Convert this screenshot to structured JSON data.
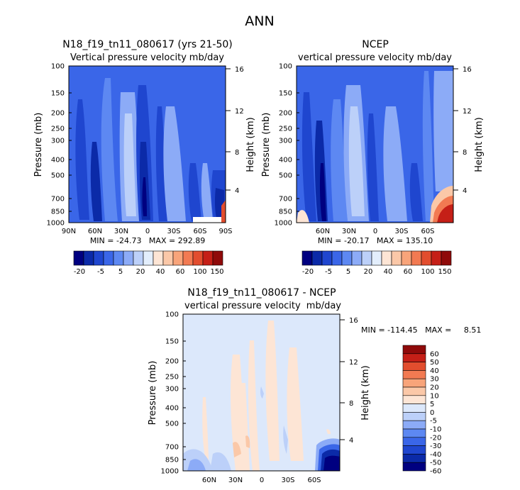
{
  "chart_data": {
    "type": "contour",
    "title": "ANN",
    "panels": [
      {
        "id": "model",
        "title": "N18_f19_tn11_080617 (yrs 21-50)",
        "subtitle_left": "Vertical pressure velocity",
        "subtitle_right": "mb/day",
        "ylabel": "Pressure (mb)",
        "y2label": "Height (km)",
        "xticks": [
          "90N",
          "60N",
          "30N",
          "0",
          "30S",
          "60S",
          "90S"
        ],
        "yticks": [
          100,
          150,
          200,
          250,
          300,
          400,
          500,
          700,
          850,
          1000
        ],
        "y2ticks": [
          4,
          8,
          12,
          16
        ],
        "stats": "MIN = -24.73   MAX = 292.89",
        "min": -24.73,
        "max": 292.89,
        "colorbar_labels": [
          "-20",
          "-5",
          "5",
          "20",
          "40",
          "60",
          "100",
          "150"
        ]
      },
      {
        "id": "obs",
        "title": "NCEP",
        "subtitle_left": "vertical pressure velocity",
        "subtitle_right": "mb/day",
        "ylabel": "Pressure (mb)",
        "y2label": "Height (km)",
        "xticks": [
          "60N",
          "30N",
          "0",
          "30S",
          "60S"
        ],
        "yticks": [
          100,
          150,
          200,
          250,
          300,
          400,
          500,
          700,
          850,
          1000
        ],
        "y2ticks": [
          4,
          8,
          12,
          16
        ],
        "stats": "MIN = -20.17   MAX = 135.10",
        "min": -20.17,
        "max": 135.1,
        "colorbar_labels": [
          "-20",
          "-5",
          "5",
          "20",
          "40",
          "60",
          "100",
          "150"
        ]
      },
      {
        "id": "diff",
        "title": "N18_f19_tn11_080617 - NCEP",
        "subtitle_left": "vertical pressure velocity",
        "subtitle_right": "mb/day",
        "ylabel": "Pressure (mb)",
        "y2label": "Height (km)",
        "xticks": [
          "60N",
          "30N",
          "0",
          "30S",
          "60S"
        ],
        "yticks": [
          100,
          150,
          200,
          250,
          300,
          400,
          500,
          700,
          850,
          1000
        ],
        "y2ticks": [
          4,
          8,
          12,
          16
        ],
        "stats": "MIN = -114.45   MAX =     8.51",
        "min": -114.45,
        "max": 8.51,
        "colorbar_labels": [
          "60",
          "50",
          "40",
          "30",
          "20",
          "10",
          "5",
          "0",
          "-5",
          "-10",
          "-20",
          "-30",
          "-40",
          "-50",
          "-60"
        ]
      }
    ],
    "colorbar_main_colors": [
      "#000080",
      "#0b2aa8",
      "#1f46cf",
      "#3a66e8",
      "#5d88f2",
      "#8cabf7",
      "#bcd0f9",
      "#e3eefc",
      "#fde5d5",
      "#fbc8a8",
      "#f8a47a",
      "#f27a52",
      "#e24d2e",
      "#c51f17",
      "#8f0a0a"
    ],
    "colorbar_diff_colors": [
      "#8f0a0a",
      "#c51f17",
      "#e24d2e",
      "#f27a52",
      "#f8a47a",
      "#fbc8a8",
      "#fde5d5",
      "#dce8fb",
      "#bcd0f9",
      "#8cabf7",
      "#5d88f2",
      "#3a66e8",
      "#1f46cf",
      "#0b2aa8",
      "#000080"
    ]
  }
}
